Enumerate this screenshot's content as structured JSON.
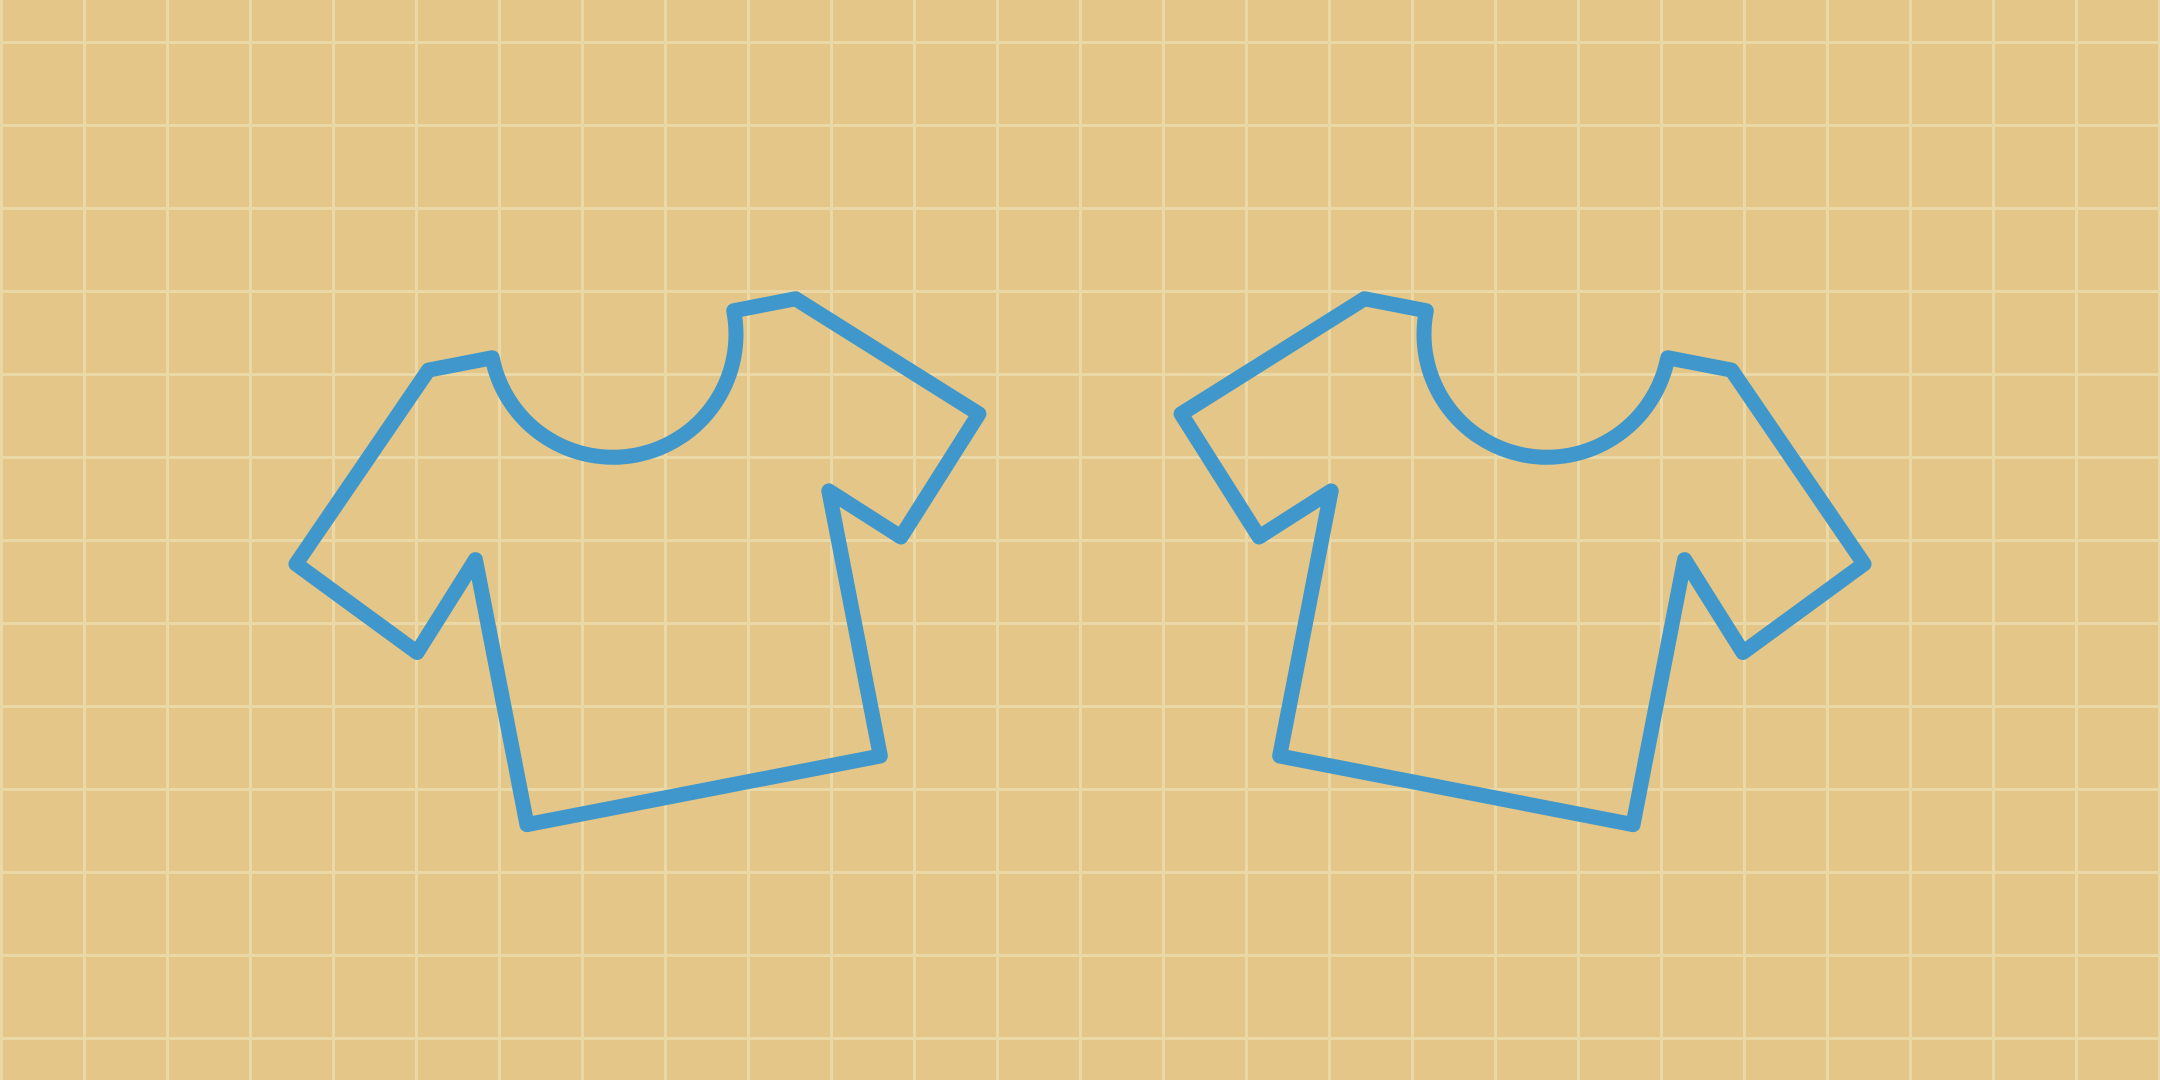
{
  "scene": {
    "description_icons": [
      "tshirt-outline-icon",
      "tshirt-outline-icon"
    ]
  },
  "colors": {
    "background": "#e4c688",
    "grid_line": "#ead8a6",
    "shirt_stroke": "#3f97cb"
  }
}
